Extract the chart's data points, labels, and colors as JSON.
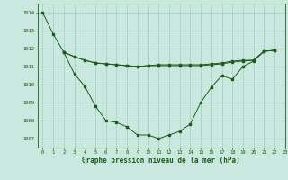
{
  "background_color": "#cbe8e0",
  "grid_color": "#9ecfbf",
  "line_color": "#1a5c1a",
  "xlabel": "Graphe pression niveau de la mer (hPa)",
  "xlim": [
    -0.5,
    23
  ],
  "ylim": [
    1006.5,
    1014.5
  ],
  "yticks": [
    1007,
    1008,
    1009,
    1010,
    1011,
    1012,
    1013,
    1014
  ],
  "xticks": [
    0,
    1,
    2,
    3,
    4,
    5,
    6,
    7,
    8,
    9,
    10,
    11,
    12,
    13,
    14,
    15,
    16,
    17,
    18,
    19,
    20,
    21,
    22,
    23
  ],
  "series1_x": [
    0,
    1,
    2,
    3,
    4,
    5,
    6,
    7,
    8,
    9,
    10,
    11,
    12,
    13,
    14,
    15,
    16,
    17,
    18,
    19,
    20,
    21,
    22
  ],
  "series1_y": [
    1014.0,
    1012.8,
    1011.8,
    1010.6,
    1009.9,
    1008.8,
    1008.0,
    1007.9,
    1007.65,
    1007.2,
    1007.2,
    1007.0,
    1007.2,
    1007.4,
    1007.8,
    1009.0,
    1009.85,
    1010.5,
    1010.3,
    1011.0,
    1011.3,
    1011.85,
    1011.9
  ],
  "series2_x": [
    2,
    3,
    4,
    5,
    6,
    7,
    8,
    9,
    10,
    11,
    12,
    13,
    14,
    15,
    16,
    17,
    18,
    19,
    20,
    21,
    22
  ],
  "series2_y": [
    1011.8,
    1011.55,
    1011.35,
    1011.2,
    1011.15,
    1011.1,
    1011.05,
    1011.0,
    1011.05,
    1011.1,
    1011.1,
    1011.1,
    1011.1,
    1011.1,
    1011.15,
    1011.2,
    1011.3,
    1011.35,
    1011.35,
    1011.85,
    1011.9
  ],
  "series3_x": [
    2,
    3,
    4,
    5,
    6,
    7,
    8,
    9,
    10,
    11,
    12,
    13,
    14,
    15,
    16,
    17,
    18,
    19,
    20,
    21,
    22
  ],
  "series3_y": [
    1011.8,
    1011.55,
    1011.35,
    1011.2,
    1011.15,
    1011.1,
    1011.05,
    1011.0,
    1011.05,
    1011.05,
    1011.05,
    1011.05,
    1011.05,
    1011.05,
    1011.1,
    1011.15,
    1011.25,
    1011.3,
    1011.35,
    1011.85,
    1011.9
  ],
  "ylabel_fontsize": 4.5,
  "xlabel_fontsize": 5.5,
  "tick_fontsize": 4.0
}
